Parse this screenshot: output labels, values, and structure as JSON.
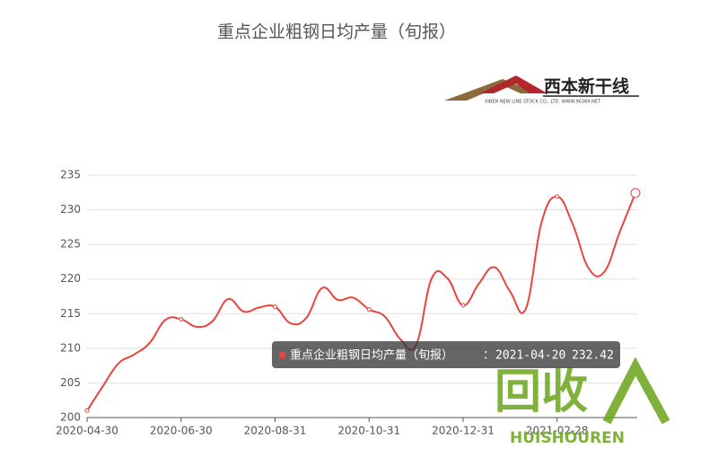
{
  "chart_data": {
    "type": "line",
    "title": "重点企业粗钢日均产量（旬报）",
    "logo": {
      "name": "西本新干线",
      "subtitle": "XIBEN NEW LINE STOCK CO., LTD.  WWW.96369.NET"
    },
    "categories": [
      "2020-04-30",
      null,
      null,
      null,
      null,
      null,
      "2020-06-30",
      null,
      null,
      null,
      null,
      null,
      "2020-08-31",
      null,
      null,
      null,
      null,
      null,
      "2020-10-31",
      null,
      null,
      null,
      null,
      null,
      "2020-12-31",
      null,
      null,
      null,
      null,
      null,
      "2021-02-28",
      null,
      null,
      null,
      null,
      null
    ],
    "series": [
      {
        "name": "重点企业粗钢日均产量（旬报）",
        "color": "#e8453c",
        "values": [
          201.0,
          204.5,
          207.8,
          209.1,
          210.8,
          214.1,
          214.2,
          213.1,
          213.9,
          217.1,
          215.3,
          215.9,
          216.0,
          213.6,
          214.4,
          218.7,
          217.0,
          217.3,
          215.6,
          214.6,
          211.3,
          210.5,
          220.1,
          220.1,
          216.2,
          219.3,
          221.7,
          218.2,
          215.7,
          228.1,
          231.9,
          227.9,
          221.6,
          221.0,
          226.8,
          232.42
        ]
      }
    ],
    "ylim": [
      200,
      235
    ],
    "yticks": [
      200,
      205,
      210,
      215,
      220,
      225,
      230,
      235
    ],
    "grid": true,
    "tooltip": {
      "date": "2021-04-20"
    },
    "watermark": {
      "mark": "回收",
      "name": "HUISHOUREN"
    }
  }
}
